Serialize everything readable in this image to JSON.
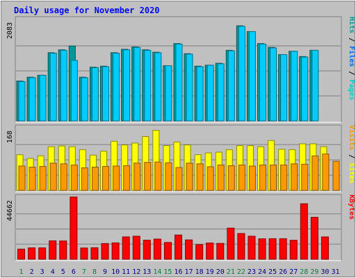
{
  "chart_data": {
    "type": "bar",
    "title": "Daily usage for November 2020",
    "categories": [
      "1",
      "2",
      "3",
      "4",
      "5",
      "6",
      "7",
      "8",
      "9",
      "10",
      "11",
      "12",
      "13",
      "14",
      "15",
      "16",
      "17",
      "18",
      "19",
      "20",
      "21",
      "22",
      "23",
      "24",
      "25",
      "26",
      "27",
      "28",
      "29",
      "30",
      "31"
    ],
    "weekend_days": [
      "1",
      "7",
      "8",
      "14",
      "15",
      "21",
      "22",
      "28",
      "29"
    ],
    "panels": [
      {
        "id": "hits",
        "max_label": "2083",
        "ylim": [
          0,
          2083
        ],
        "legend": [
          "Pages",
          "Files",
          "Hits"
        ],
        "series": [
          {
            "name": "Hits",
            "color": "#009999",
            "values": [
              830,
              910,
              950,
              1420,
              1480,
              1560,
              910,
              1120,
              1140,
              1420,
              1490,
              1540,
              1480,
              1430,
              1150,
              1610,
              1400,
              1140,
              1160,
              1200,
              1470,
              1980,
              1860,
              1610,
              1530,
              1380,
              1450,
              1340,
              1470,
              0,
              0
            ]
          },
          {
            "name": "Files",
            "color": "#00ccff",
            "values": [
              820,
              900,
              950,
              1410,
              1470,
              1260,
              900,
              1110,
              1130,
              1410,
              1480,
              1530,
              1470,
              1420,
              1150,
              1600,
              1390,
              1130,
              1160,
              1190,
              1460,
              1970,
              1860,
              1600,
              1520,
              1380,
              1450,
              1330,
              1470,
              0,
              0
            ]
          }
        ]
      },
      {
        "id": "visits",
        "max_label": "168",
        "ylim": [
          0,
          168
        ],
        "legend": [
          "Sites",
          "Visits"
        ],
        "series": [
          {
            "name": "Visits",
            "color": "#ffff00",
            "values": [
              98,
              88,
              95,
              120,
              122,
              120,
              112,
              97,
              108,
              135,
              125,
              130,
              148,
              165,
              123,
              133,
              125,
              98,
              103,
              105,
              112,
              123,
              123,
              120,
              137,
              113,
              112,
              128,
              128,
              120,
              0
            ]
          },
          {
            "name": "Sites",
            "color": "#ff9900",
            "values": [
              67,
              64,
              66,
              75,
              73,
              70,
              62,
              64,
              66,
              67,
              68,
              75,
              77,
              78,
              76,
              63,
              75,
              73,
              65,
              70,
              68,
              70,
              67,
              70,
              70,
              70,
              73,
              72,
              95,
              100,
              80
            ]
          }
        ]
      },
      {
        "id": "kbytes",
        "max_label": "44662",
        "ylim": [
          0,
          44662
        ],
        "legend": [
          "KBytes"
        ],
        "series": [
          {
            "name": "KBytes",
            "color": "#ff0000",
            "values": [
              7500,
              8400,
              8400,
              13600,
              13500,
              46000,
              8300,
              8500,
              11600,
              12100,
              16500,
              17000,
              14100,
              14900,
              12400,
              17900,
              14300,
              10800,
              12000,
              11700,
              23000,
              19000,
              17000,
              15100,
              15200,
              15200,
              14000,
              41000,
              31000,
              16500,
              0
            ]
          }
        ]
      }
    ]
  },
  "colors": {
    "background": "#c0c0c0",
    "title": "#0000ff",
    "weekday_label": "#000080",
    "weekend_label": "#008040",
    "pages_legend": "#00cccc",
    "grid": "#808080"
  }
}
